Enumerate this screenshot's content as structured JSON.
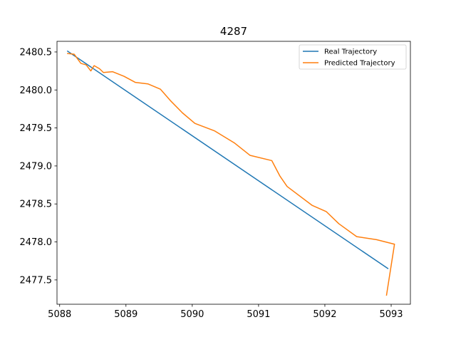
{
  "chart_data": {
    "type": "line",
    "title": "4287",
    "xlabel": "",
    "ylabel": "",
    "xlim": [
      5087.96,
      5093.29
    ],
    "ylim": [
      2477.18,
      2480.64
    ],
    "xticks": [
      5088,
      5089,
      5090,
      5091,
      5092,
      5093
    ],
    "yticks": [
      2477.5,
      2478.0,
      2478.5,
      2479.0,
      2479.5,
      2480.0,
      2480.5
    ],
    "ytick_labels": [
      "2477.5",
      "2478.0",
      "2478.5",
      "2479.0",
      "2479.5",
      "2480.0",
      "2480.5"
    ],
    "grid": false,
    "legend_position": "top-right",
    "series": [
      {
        "name": "Real Trajectory",
        "color": "#1f77b4",
        "points": [
          [
            5088.12,
            2480.51
          ],
          [
            5092.95,
            2477.65
          ]
        ]
      },
      {
        "name": "Predicted Trajectory",
        "color": "#ff7f0e",
        "points": [
          [
            5088.12,
            2480.48
          ],
          [
            5088.22,
            2480.47
          ],
          [
            5088.32,
            2480.35
          ],
          [
            5088.4,
            2480.33
          ],
          [
            5088.47,
            2480.25
          ],
          [
            5088.52,
            2480.32
          ],
          [
            5088.6,
            2480.28
          ],
          [
            5088.66,
            2480.23
          ],
          [
            5088.8,
            2480.24
          ],
          [
            5088.97,
            2480.18
          ],
          [
            5089.14,
            2480.1
          ],
          [
            5089.33,
            2480.08
          ],
          [
            5089.52,
            2480.01
          ],
          [
            5089.67,
            2479.86
          ],
          [
            5089.85,
            2479.7
          ],
          [
            5090.04,
            2479.56
          ],
          [
            5090.34,
            2479.46
          ],
          [
            5090.64,
            2479.3
          ],
          [
            5090.87,
            2479.14
          ],
          [
            5091.2,
            2479.07
          ],
          [
            5091.32,
            2478.87
          ],
          [
            5091.43,
            2478.73
          ],
          [
            5091.81,
            2478.48
          ],
          [
            5092.02,
            2478.4
          ],
          [
            5092.21,
            2478.24
          ],
          [
            5092.48,
            2478.07
          ],
          [
            5092.78,
            2478.03
          ],
          [
            5093.05,
            2477.97
          ],
          [
            5092.93,
            2477.3
          ]
        ]
      }
    ]
  }
}
